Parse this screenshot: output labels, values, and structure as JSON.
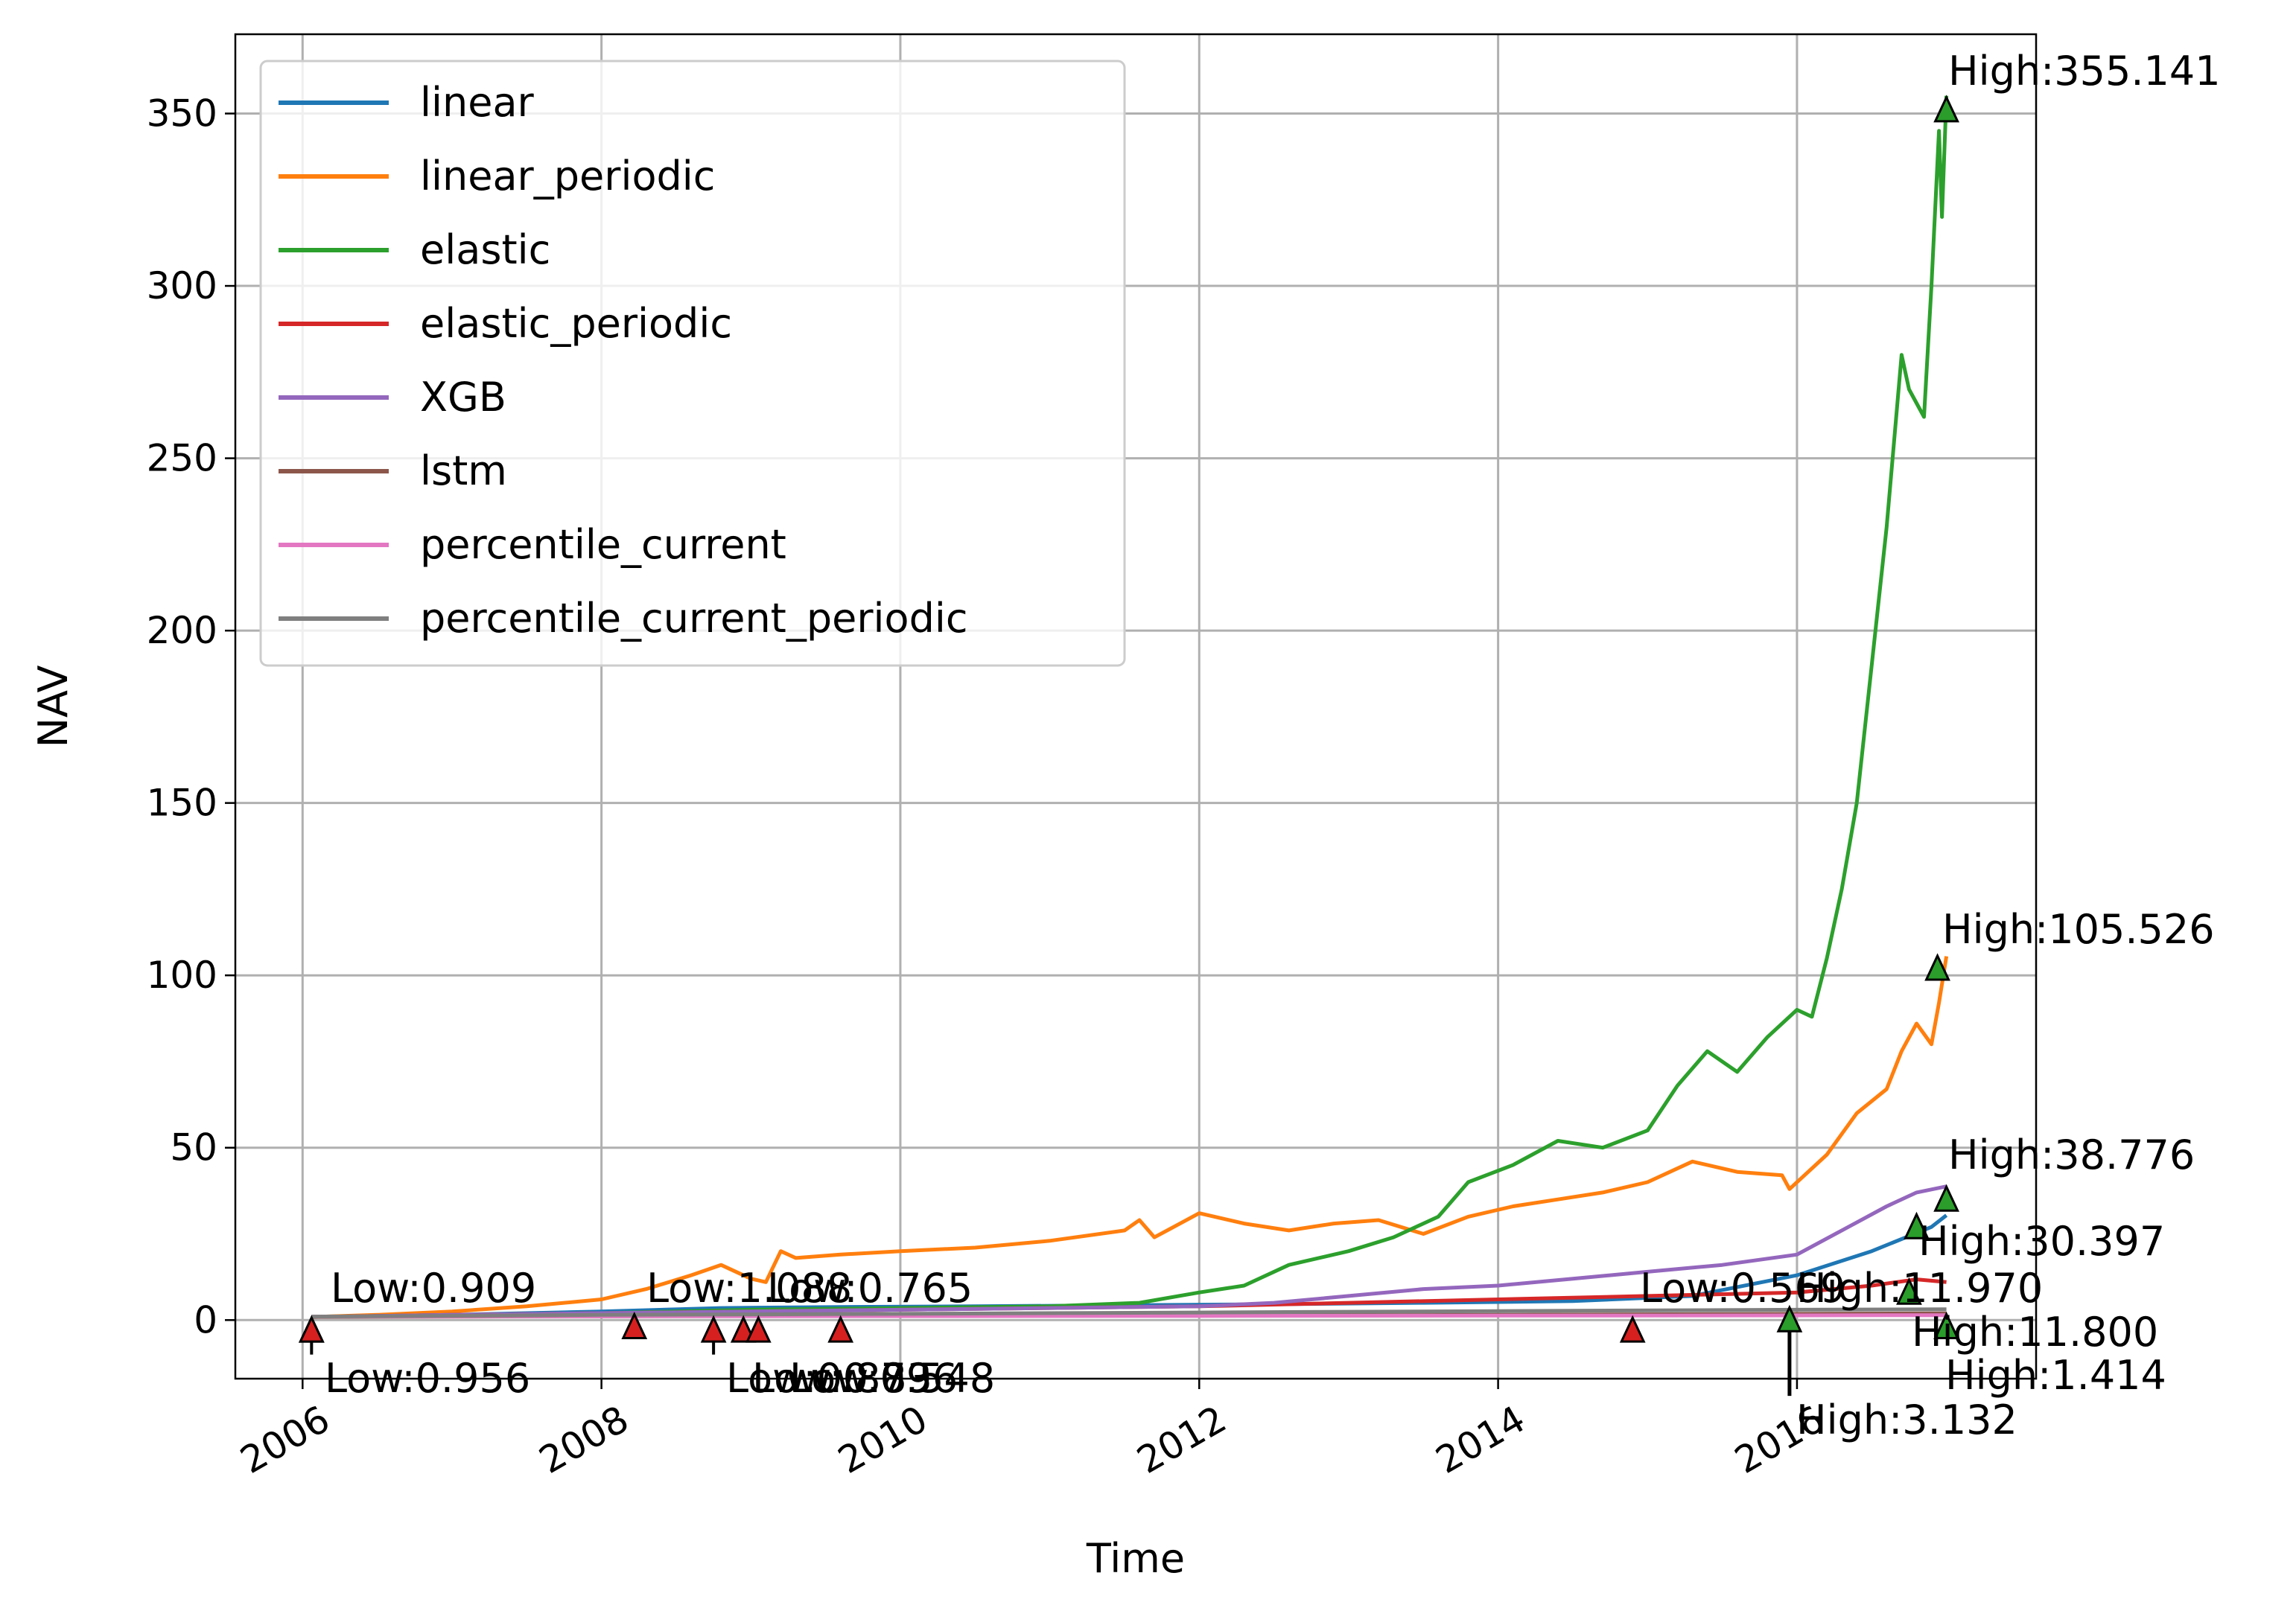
{
  "chart_data": {
    "type": "line",
    "xlabel": "Time",
    "ylabel": "NAV",
    "xlim": [
      2005.55,
      2017.6
    ],
    "ylim": [
      -17,
      373
    ],
    "x_ticks": [
      2006,
      2008,
      2010,
      2012,
      2014,
      2016
    ],
    "x_tick_labels": [
      "2006",
      "2008",
      "2010",
      "2012",
      "2014",
      "2016"
    ],
    "y_ticks": [
      0,
      50,
      100,
      150,
      200,
      250,
      300,
      350
    ],
    "y_tick_labels": [
      "0",
      "50",
      "100",
      "150",
      "200",
      "250",
      "300",
      "350"
    ],
    "grid": true,
    "legend_position": "upper-left",
    "series": [
      {
        "name": "linear",
        "color": "#1f77b4",
        "points": [
          [
            2006.06,
            0.956
          ],
          [
            2007,
            1.5
          ],
          [
            2008,
            2.5
          ],
          [
            2008.8,
            3.5
          ],
          [
            2009.6,
            3.8
          ],
          [
            2010.5,
            4
          ],
          [
            2011.5,
            4.3
          ],
          [
            2012.5,
            4.6
          ],
          [
            2013.5,
            5
          ],
          [
            2014.5,
            5.5
          ],
          [
            2015.3,
            7
          ],
          [
            2016,
            13
          ],
          [
            2016.5,
            20
          ],
          [
            2016.9,
            27
          ],
          [
            2017.0,
            30.397
          ]
        ]
      },
      {
        "name": "linear_periodic",
        "color": "#ff7f0e",
        "points": [
          [
            2006.06,
            0.909
          ],
          [
            2006.5,
            1.5
          ],
          [
            2007.0,
            2.5
          ],
          [
            2007.5,
            4
          ],
          [
            2008.0,
            6
          ],
          [
            2008.3,
            9
          ],
          [
            2008.6,
            13
          ],
          [
            2008.8,
            16
          ],
          [
            2009.0,
            12
          ],
          [
            2009.1,
            11
          ],
          [
            2009.2,
            20
          ],
          [
            2009.3,
            18
          ],
          [
            2009.6,
            19
          ],
          [
            2010.0,
            20
          ],
          [
            2010.5,
            21
          ],
          [
            2011.0,
            23
          ],
          [
            2011.5,
            26
          ],
          [
            2011.6,
            29
          ],
          [
            2011.7,
            24
          ],
          [
            2012.0,
            31
          ],
          [
            2012.3,
            28
          ],
          [
            2012.6,
            26
          ],
          [
            2012.9,
            28
          ],
          [
            2013.2,
            29
          ],
          [
            2013.5,
            25
          ],
          [
            2013.8,
            30
          ],
          [
            2014.1,
            33
          ],
          [
            2014.4,
            35
          ],
          [
            2014.7,
            37
          ],
          [
            2015.0,
            40
          ],
          [
            2015.3,
            46
          ],
          [
            2015.6,
            43
          ],
          [
            2015.9,
            42
          ],
          [
            2015.95,
            38
          ],
          [
            2016.2,
            48
          ],
          [
            2016.4,
            60
          ],
          [
            2016.6,
            67
          ],
          [
            2016.7,
            78
          ],
          [
            2016.8,
            86
          ],
          [
            2016.9,
            80
          ],
          [
            2016.95,
            92
          ],
          [
            2017.0,
            105.526
          ]
        ]
      },
      {
        "name": "elastic",
        "color": "#2ca02c",
        "points": [
          [
            2006.06,
            0.9
          ],
          [
            2007,
            1.5
          ],
          [
            2008,
            2
          ],
          [
            2009,
            3
          ],
          [
            2010,
            3.5
          ],
          [
            2011,
            4
          ],
          [
            2011.6,
            5
          ],
          [
            2012.0,
            8
          ],
          [
            2012.3,
            10
          ],
          [
            2012.6,
            16
          ],
          [
            2013.0,
            20
          ],
          [
            2013.3,
            24
          ],
          [
            2013.6,
            30
          ],
          [
            2013.8,
            40
          ],
          [
            2014.1,
            45
          ],
          [
            2014.4,
            52
          ],
          [
            2014.7,
            50
          ],
          [
            2015.0,
            55
          ],
          [
            2015.2,
            68
          ],
          [
            2015.4,
            78
          ],
          [
            2015.6,
            72
          ],
          [
            2015.8,
            82
          ],
          [
            2016.0,
            90
          ],
          [
            2016.1,
            88
          ],
          [
            2016.2,
            105
          ],
          [
            2016.3,
            125
          ],
          [
            2016.4,
            150
          ],
          [
            2016.5,
            190
          ],
          [
            2016.6,
            230
          ],
          [
            2016.7,
            280
          ],
          [
            2016.75,
            270
          ],
          [
            2016.85,
            262
          ],
          [
            2016.9,
            300
          ],
          [
            2016.95,
            345
          ],
          [
            2016.97,
            320
          ],
          [
            2017.0,
            355.141
          ]
        ]
      },
      {
        "name": "elastic_periodic",
        "color": "#d62728",
        "points": [
          [
            2006.06,
            0.9
          ],
          [
            2007,
            1.5
          ],
          [
            2008,
            2
          ],
          [
            2009,
            2.5
          ],
          [
            2010,
            3
          ],
          [
            2011,
            3.5
          ],
          [
            2012,
            4
          ],
          [
            2013,
            5
          ],
          [
            2014,
            6
          ],
          [
            2015,
            7
          ],
          [
            2016,
            8
          ],
          [
            2016.5,
            10
          ],
          [
            2016.8,
            11.8
          ],
          [
            2017.0,
            11
          ]
        ]
      },
      {
        "name": "XGB",
        "color": "#9467bd",
        "points": [
          [
            2006.06,
            0.9
          ],
          [
            2007,
            1.5
          ],
          [
            2008,
            2
          ],
          [
            2009,
            2.5
          ],
          [
            2010,
            3
          ],
          [
            2011,
            3.5
          ],
          [
            2012,
            4
          ],
          [
            2012.5,
            5
          ],
          [
            2013,
            7
          ],
          [
            2013.5,
            9
          ],
          [
            2014,
            10
          ],
          [
            2014.5,
            12
          ],
          [
            2015,
            14
          ],
          [
            2015.5,
            16
          ],
          [
            2016,
            19
          ],
          [
            2016.3,
            26
          ],
          [
            2016.6,
            33
          ],
          [
            2016.8,
            37
          ],
          [
            2017.0,
            38.776
          ]
        ]
      },
      {
        "name": "lstm",
        "color": "#8c564b",
        "points": [
          [
            2006.06,
            0.9
          ],
          [
            2008,
            1.1
          ],
          [
            2010,
            1.2
          ],
          [
            2012,
            1.3
          ],
          [
            2014,
            1.5
          ],
          [
            2016,
            1.8
          ],
          [
            2017.0,
            1.97
          ]
        ]
      },
      {
        "name": "percentile_current",
        "color": "#e377c2",
        "points": [
          [
            2006.06,
            1.0
          ],
          [
            2008,
            1.1
          ],
          [
            2010,
            1.15
          ],
          [
            2012,
            1.2
          ],
          [
            2014,
            1.3
          ],
          [
            2016,
            1.35
          ],
          [
            2017.0,
            1.414
          ]
        ]
      },
      {
        "name": "percentile_current_periodic",
        "color": "#7f7f7f",
        "points": [
          [
            2006.06,
            1.0
          ],
          [
            2008,
            1.5
          ],
          [
            2010,
            1.8
          ],
          [
            2012,
            2.2
          ],
          [
            2014,
            2.6
          ],
          [
            2016,
            3.0
          ],
          [
            2017.0,
            3.132
          ]
        ]
      }
    ],
    "high_markers": [
      {
        "x": 2017.0,
        "y": 351,
        "label": "High:355.141"
      },
      {
        "x": 2016.94,
        "y": 102,
        "label": "High:105.526"
      },
      {
        "x": 2017.0,
        "y": 35,
        "label": "High:38.776"
      },
      {
        "x": 2016.8,
        "y": 27,
        "label": "High:30.397"
      },
      {
        "x": 2016.75,
        "y": 8,
        "label": "High:11.970"
      },
      {
        "x": 2017.0,
        "y": -2,
        "label": "High:11.800"
      },
      {
        "x": 2017.0,
        "y": -2,
        "label": "High:1.414"
      },
      {
        "x": 2015.95,
        "y": 0,
        "label": "High:3.132"
      }
    ],
    "low_markers": [
      {
        "x": 2006.06,
        "y": -3,
        "label": "Low:0.909"
      },
      {
        "x": 2006.06,
        "y": -3,
        "label": "Low:0.956"
      },
      {
        "x": 2008.22,
        "y": -2,
        "label": "Low:1.088"
      },
      {
        "x": 2008.75,
        "y": -3,
        "label": "Low:0.765"
      },
      {
        "x": 2008.95,
        "y": -3,
        "label": "Low:0.879"
      },
      {
        "x": 2009.05,
        "y": -3,
        "label": "Low:0.836"
      },
      {
        "x": 2009.6,
        "y": -3,
        "label": "Low:0.548"
      },
      {
        "x": 2014.9,
        "y": -3,
        "label": "Low:0.569"
      }
    ]
  }
}
